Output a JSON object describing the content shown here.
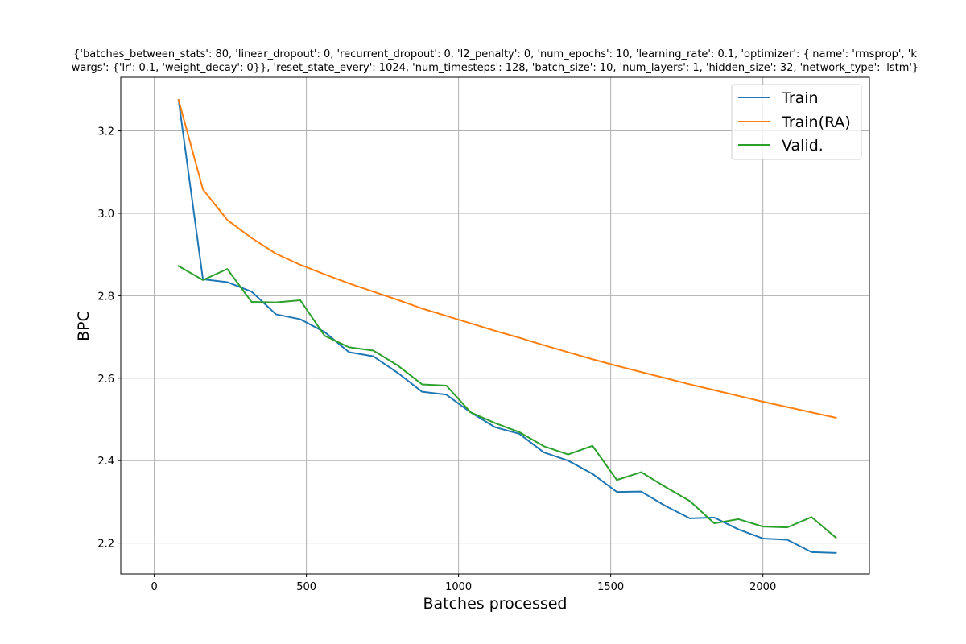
{
  "chart_data": {
    "type": "line",
    "title_lines": [
      "{'batches_between_stats': 80, 'linear_dropout': 0, 'recurrent_dropout': 0, 'l2_penalty': 0, 'num_epochs': 10, 'learning_rate': 0.1, 'optimizer': {'name': 'rmsprop', 'k",
      "wargs': {'lr': 0.1, 'weight_decay': 0}}, 'reset_state_every': 1024, 'num_timesteps': 128, 'batch_size': 10, 'num_layers': 1, 'hidden_size': 32, 'network_type': 'lstm'}"
    ],
    "xlabel": "Batches processed",
    "ylabel": "BPC",
    "xlim": [
      -110,
      2350
    ],
    "ylim": [
      2.125,
      3.33
    ],
    "x_ticks": [
      0,
      500,
      1000,
      1500,
      2000
    ],
    "y_ticks": [
      2.2,
      2.4,
      2.6,
      2.8,
      3.0,
      3.2
    ],
    "y_tick_labels": [
      "2.2",
      "2.4",
      "2.6",
      "2.8",
      "3.0",
      "3.2"
    ],
    "grid": true,
    "legend_position": "top-right",
    "x": [
      80,
      160,
      240,
      320,
      400,
      480,
      560,
      640,
      720,
      800,
      880,
      960,
      1040,
      1120,
      1200,
      1280,
      1360,
      1440,
      1520,
      1600,
      1680,
      1760,
      1840,
      1920,
      2000,
      2080,
      2160,
      2240
    ],
    "series": [
      {
        "name": "Train",
        "color": "#1f77b4",
        "values": [
          3.275,
          2.84,
          2.833,
          2.81,
          2.755,
          2.743,
          2.712,
          2.663,
          2.653,
          2.613,
          2.567,
          2.56,
          2.517,
          2.481,
          2.465,
          2.42,
          2.4,
          2.368,
          2.324,
          2.325,
          2.29,
          2.26,
          2.262,
          2.233,
          2.211,
          2.208,
          2.178,
          2.176
        ]
      },
      {
        "name": "Train(RA)",
        "color": "#ff7f0e",
        "values": [
          3.275,
          3.058,
          2.984,
          2.94,
          2.902,
          2.875,
          2.852,
          2.83,
          2.81,
          2.79,
          2.769,
          2.751,
          2.733,
          2.715,
          2.698,
          2.68,
          2.663,
          2.646,
          2.63,
          2.615,
          2.6,
          2.585,
          2.571,
          2.557,
          2.543,
          2.53,
          2.517,
          2.504
        ]
      },
      {
        "name": "Valid.",
        "color": "#2ca02c",
        "values": [
          2.872,
          2.838,
          2.865,
          2.785,
          2.784,
          2.789,
          2.703,
          2.675,
          2.667,
          2.631,
          2.585,
          2.582,
          2.517,
          2.491,
          2.469,
          2.435,
          2.415,
          2.436,
          2.353,
          2.372,
          2.336,
          2.302,
          2.248,
          2.258,
          2.24,
          2.238,
          2.263,
          2.213
        ]
      }
    ]
  }
}
